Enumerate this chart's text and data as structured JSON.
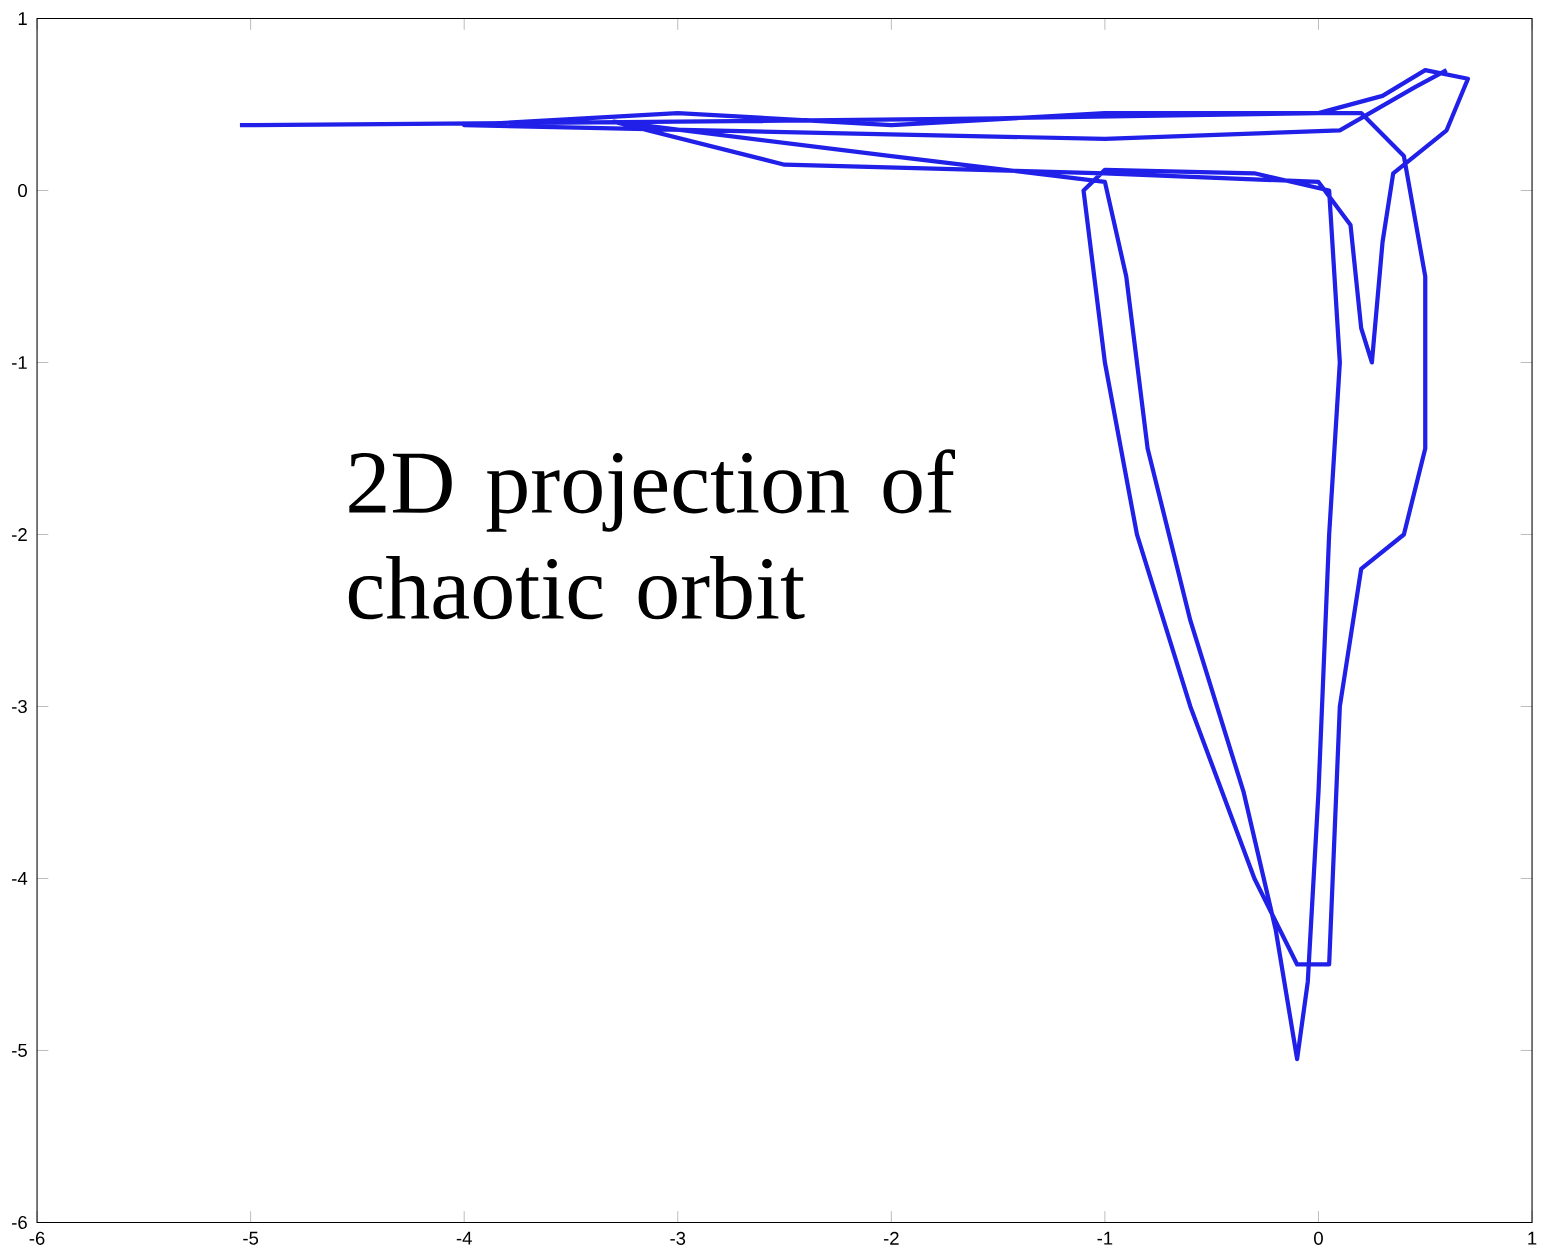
{
  "chart_data": {
    "type": "line",
    "annotations": [
      "2D projection of chaotic orbit"
    ],
    "xlim": [
      -6,
      1
    ],
    "ylim": [
      -6,
      1
    ],
    "xticks": [
      -6,
      -5,
      -4,
      -3,
      -2,
      -1,
      0,
      1
    ],
    "yticks": [
      -6,
      -5,
      -4,
      -3,
      -2,
      -1,
      0,
      1
    ],
    "grid": false,
    "marker": "none",
    "line_style": "solid",
    "series": [
      {
        "color": "#2020e8",
        "x": [
          -5.05,
          -3.0,
          -1.5,
          0.0,
          0.3,
          0.5,
          0.7,
          0.6,
          0.35,
          0.3,
          0.25,
          0.2,
          0.15,
          0.0,
          -1.0,
          -2.5,
          -3.3,
          -2.0,
          -1.0,
          -0.9,
          -0.8,
          -0.6,
          -0.35,
          -0.2,
          -0.1,
          -0.05,
          0.0,
          0.05,
          0.1,
          0.05,
          -0.3,
          -1.0,
          -1.1,
          -1.0,
          -0.85,
          -0.6,
          -0.3,
          -0.1,
          0.05,
          0.1,
          0.2,
          0.4,
          0.5,
          0.5,
          0.4,
          0.2,
          -1.0,
          -2.0,
          -3.0,
          -4.0,
          -1.0,
          0.1,
          0.45,
          0.6
        ],
        "values": [
          0.38,
          0.4,
          0.42,
          0.45,
          0.55,
          0.7,
          0.65,
          0.35,
          0.1,
          -0.3,
          -1.0,
          -0.8,
          -0.2,
          0.05,
          0.1,
          0.15,
          0.4,
          0.2,
          0.05,
          -0.5,
          -1.5,
          -2.5,
          -3.5,
          -4.3,
          -5.05,
          -4.6,
          -3.5,
          -2.0,
          -1.0,
          0.0,
          0.1,
          0.12,
          0.0,
          -1.0,
          -2.0,
          -3.0,
          -4.0,
          -4.5,
          -4.5,
          -3.0,
          -2.2,
          -2.0,
          -1.5,
          -0.5,
          0.2,
          0.45,
          0.45,
          0.38,
          0.45,
          0.38,
          0.3,
          0.35,
          0.6,
          0.7
        ]
      }
    ]
  }
}
